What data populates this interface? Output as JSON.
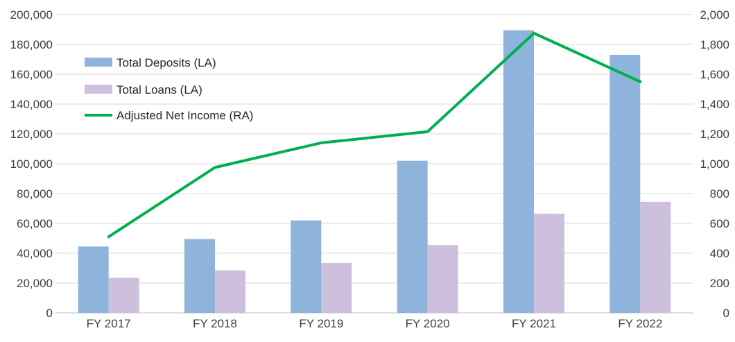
{
  "chart_data": {
    "type": "bar",
    "categories": [
      "FY 2017",
      "FY 2018",
      "FY 2019",
      "FY 2020",
      "FY 2021",
      "FY 2022"
    ],
    "series": [
      {
        "name": "Total Deposits (LA)",
        "type": "bar",
        "axis": "left",
        "color": "#8fb4dc",
        "values": [
          44500,
          49500,
          62000,
          102000,
          189500,
          173000
        ]
      },
      {
        "name": "Total Loans (LA)",
        "type": "bar",
        "axis": "left",
        "color": "#ccc0dd",
        "values": [
          23500,
          28500,
          33500,
          45500,
          66500,
          74500
        ]
      },
      {
        "name": "Adjusted Net Income (RA)",
        "type": "line",
        "axis": "right",
        "color": "#00b050",
        "values": [
          510,
          975,
          1140,
          1215,
          1875,
          1550
        ]
      }
    ],
    "left_axis": {
      "min": 0,
      "max": 200000,
      "step": 20000,
      "tick_labels": [
        "0",
        "20,000",
        "40,000",
        "60,000",
        "80,000",
        "100,000",
        "120,000",
        "140,000",
        "160,000",
        "180,000",
        "200,000"
      ]
    },
    "right_axis": {
      "min": 0,
      "max": 2000,
      "step": 200,
      "tick_labels": [
        "0",
        "200",
        "400",
        "600",
        "800",
        "1,000",
        "1,200",
        "1,400",
        "1,600",
        "1,800",
        "2,000"
      ]
    },
    "grid": true,
    "legend_position": "top-left"
  }
}
